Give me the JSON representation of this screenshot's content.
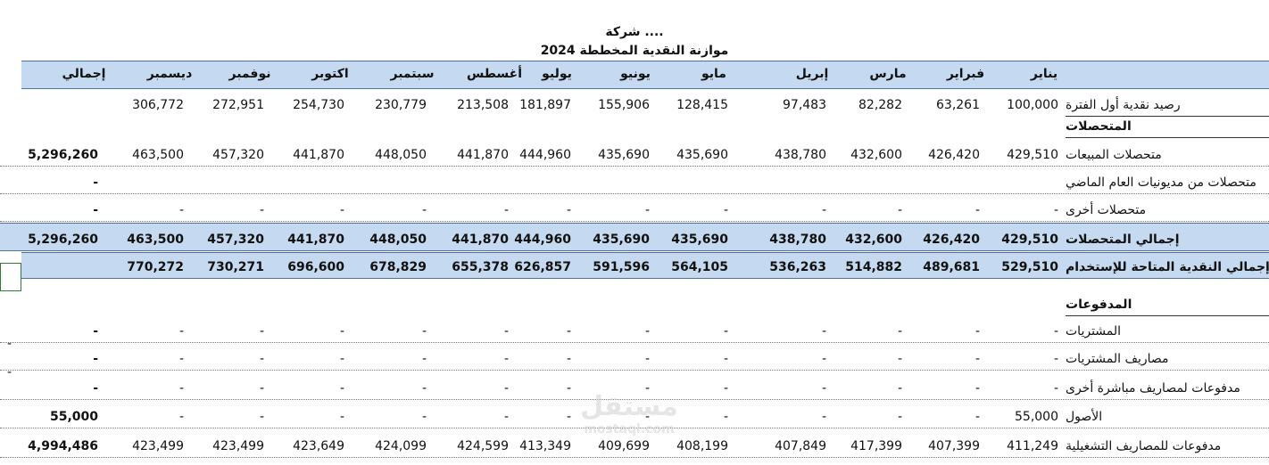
{
  "title": {
    "company": "شركة ....",
    "subtitle": "موازنة النقدية المخططة 2024"
  },
  "header": [
    "يناير",
    "فبراير",
    "مارس",
    "إبريل",
    "مايو",
    "يونيو",
    "يوليو",
    "أغسطس",
    "سبتمبر",
    "اكتوبر",
    "نوفمبر",
    "ديسمبر",
    "إجمالي"
  ],
  "rows": [
    {
      "label": "رصيد نقدية أول الفترة",
      "values": [
        "100,000",
        "63,261",
        "82,282",
        "97,483",
        "128,415",
        "155,906",
        "181,897",
        "213,508",
        "230,779",
        "254,730",
        "272,951",
        "306,772",
        ""
      ]
    },
    {
      "label": "المتحصلات",
      "values": [
        "",
        "",
        "",
        "",
        "",
        "",
        "",
        "",
        "",
        "",
        "",
        "",
        ""
      ]
    },
    {
      "label": "متحصلات المبيعات",
      "values": [
        "429,510",
        "426,420",
        "432,600",
        "438,780",
        "435,690",
        "435,690",
        "444,960",
        "441,870",
        "448,050",
        "441,870",
        "457,320",
        "463,500",
        "5,296,260"
      ]
    },
    {
      "label": "متحصلات من مديونيات العام الماضي",
      "values": [
        "",
        "",
        "",
        "",
        "",
        "",
        "",
        "",
        "",
        "",
        "",
        "",
        "-"
      ]
    },
    {
      "label": "متحصلات أخرى",
      "values": [
        "-",
        "-",
        "-",
        "-",
        "-",
        "-",
        "-",
        "-",
        "-",
        "-",
        "-",
        "-",
        "-"
      ]
    },
    {
      "label": "إجمالي المتحصلات",
      "values": [
        "429,510",
        "426,420",
        "432,600",
        "438,780",
        "435,690",
        "435,690",
        "444,960",
        "441,870",
        "448,050",
        "441,870",
        "457,320",
        "463,500",
        "5,296,260"
      ]
    },
    {
      "label": "إجمالي النقدية المتاحة للإستخدام",
      "values": [
        "529,510",
        "489,681",
        "514,882",
        "536,263",
        "564,105",
        "591,596",
        "626,857",
        "655,378",
        "678,829",
        "696,600",
        "730,271",
        "770,272",
        ""
      ]
    },
    {
      "label": "المدفوعات",
      "values": [
        "",
        "",
        "",
        "",
        "",
        "",
        "",
        "",
        "",
        "",
        "",
        "",
        ""
      ]
    },
    {
      "label": "المشتريات",
      "values": [
        "-",
        "-",
        "-",
        "-",
        "-",
        "-",
        "-",
        "-",
        "-",
        "-",
        "-",
        "-",
        "-"
      ]
    },
    {
      "label": "مصاريف المشتريات",
      "values": [
        "-",
        "-",
        "-",
        "-",
        "-",
        "-",
        "-",
        "-",
        "-",
        "-",
        "-",
        "-",
        "-"
      ]
    },
    {
      "label": "مدفوعات لمصاريف مباشرة أخرى",
      "values": [
        "-",
        "-",
        "-",
        "-",
        "-",
        "-",
        "-",
        "-",
        "-",
        "-",
        "-",
        "-",
        "-"
      ]
    },
    {
      "label": "الأصول",
      "values": [
        "55,000",
        "-",
        "-",
        "-",
        "-",
        "-",
        "-",
        "-",
        "-",
        "-",
        "-",
        "-",
        "55,000"
      ]
    },
    {
      "label": "مدفوعات للمصاريف التشغيلية",
      "values": [
        "411,249",
        "407,399",
        "417,399",
        "407,849",
        "408,199",
        "409,699",
        "413,349",
        "424,599",
        "424,099",
        "423,649",
        "423,499",
        "423,499",
        "4,994,486"
      ]
    }
  ],
  "stray": "-",
  "watermark": {
    "line1": "مستقل",
    "line2": "mostaql.com"
  }
}
